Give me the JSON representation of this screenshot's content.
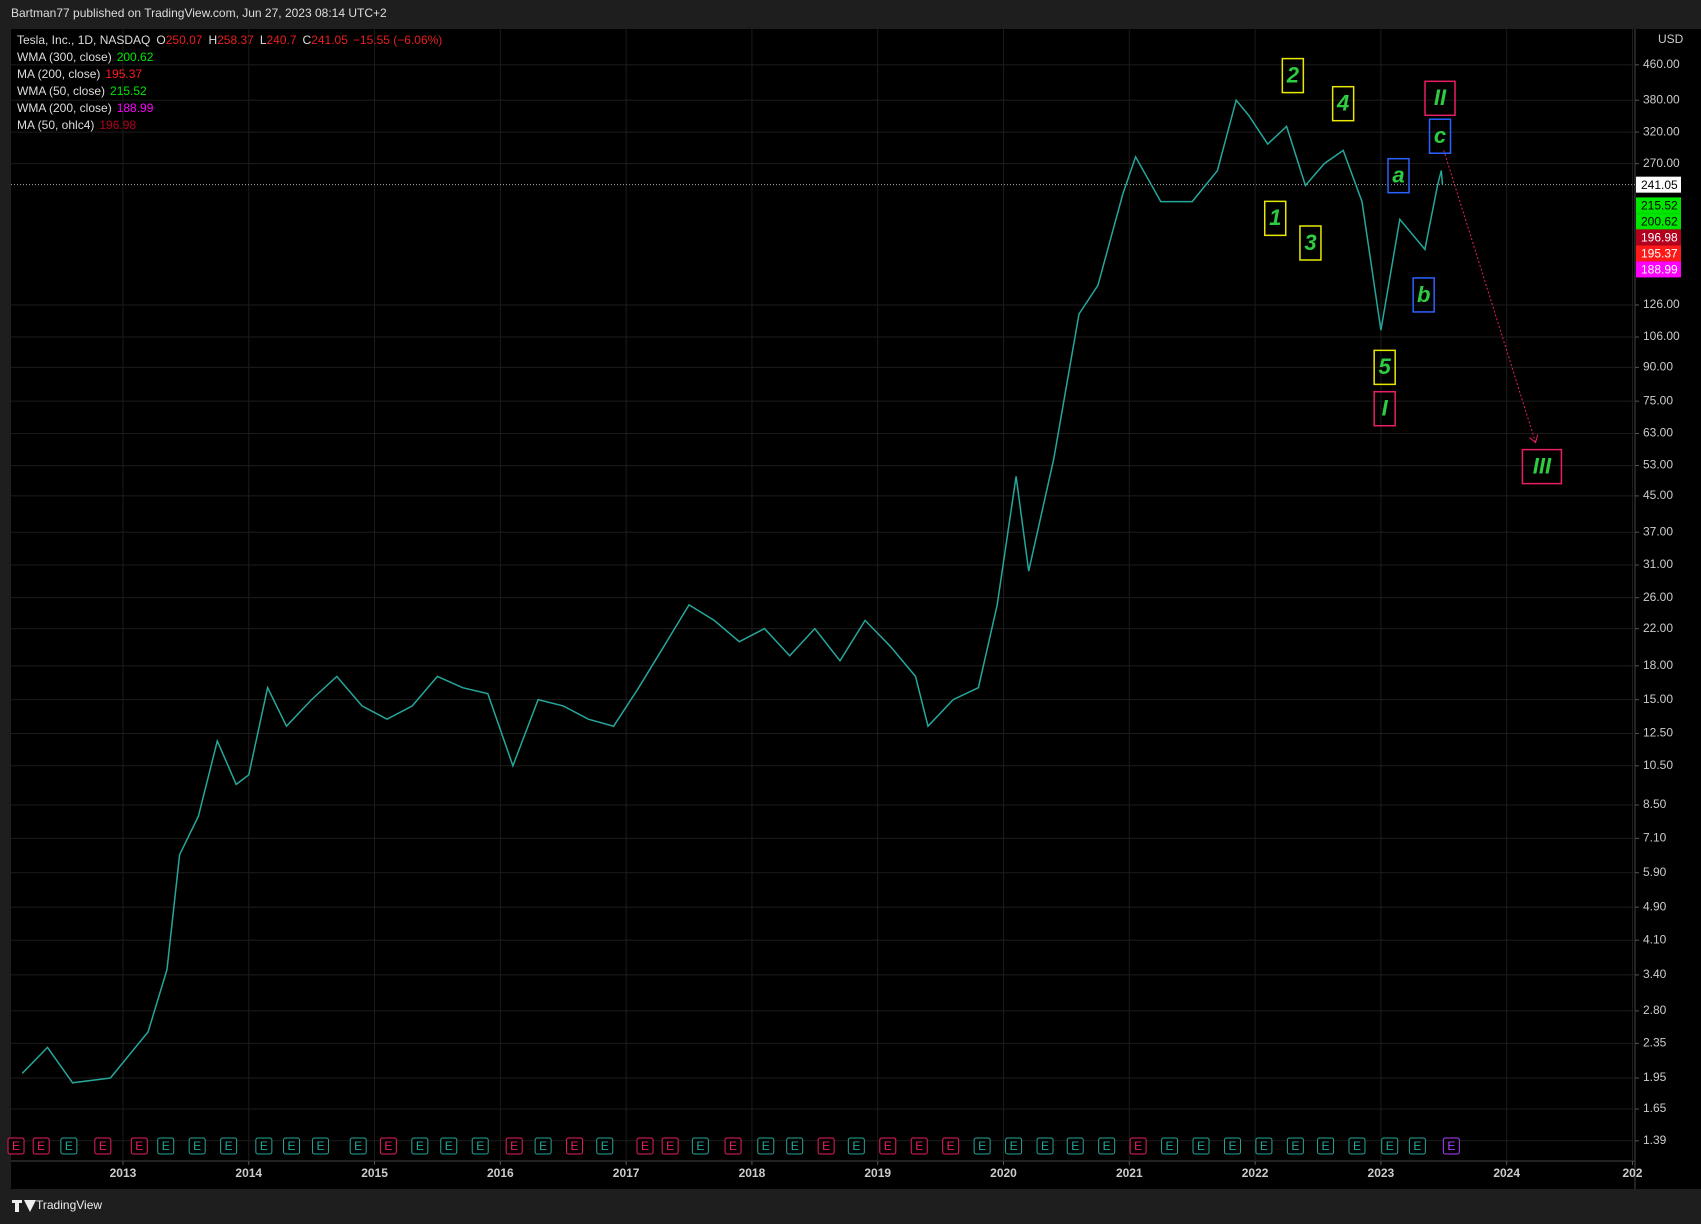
{
  "header": {
    "text": "Bartman77 published on TradingView.com, Jun 27, 2023 08:14 UTC+2"
  },
  "footer": {
    "brand": "TradingView"
  },
  "chart_data": {
    "type": "line",
    "symbol": "Tesla, Inc., 1D, NASDAQ",
    "ohlc": [
      {
        "label": "O",
        "value": 250.07
      },
      {
        "label": "H",
        "value": 258.37
      },
      {
        "label": "L",
        "value": 240.7
      },
      {
        "label": "C",
        "value": 241.05
      }
    ],
    "change": "−15.55 (−6.06%)",
    "currency": "USD",
    "indicators": [
      {
        "name": "WMA (300, close)",
        "value": 200.62,
        "color": "#00e600"
      },
      {
        "name": "MA (200, close)",
        "value": 195.37,
        "color": "#ff1a1a"
      },
      {
        "name": "WMA (50, close)",
        "value": 215.52,
        "color": "#00e600"
      },
      {
        "name": "WMA (200, close)",
        "value": 188.99,
        "color": "#ff00ff"
      },
      {
        "name": "MA (50, ohlc4)",
        "value": 196.98,
        "color": "#b2001e"
      }
    ],
    "x": [
      2012.2,
      2012.4,
      2012.6,
      2012.9,
      2013.2,
      2013.35,
      2013.45,
      2013.6,
      2013.75,
      2013.9,
      2014.0,
      2014.15,
      2014.3,
      2014.5,
      2014.7,
      2014.9,
      2015.1,
      2015.3,
      2015.5,
      2015.7,
      2015.9,
      2016.1,
      2016.3,
      2016.5,
      2016.7,
      2016.9,
      2017.1,
      2017.3,
      2017.5,
      2017.7,
      2017.9,
      2018.1,
      2018.3,
      2018.5,
      2018.7,
      2018.9,
      2019.1,
      2019.3,
      2019.4,
      2019.6,
      2019.8,
      2019.95,
      2020.1,
      2020.2,
      2020.4,
      2020.6,
      2020.75,
      2020.95,
      2021.05,
      2021.25,
      2021.5,
      2021.7,
      2021.85,
      2021.95,
      2022.1,
      2022.25,
      2022.4,
      2022.55,
      2022.7,
      2022.85,
      2023.0,
      2023.15,
      2023.35,
      2023.45,
      2023.48,
      2023.49
    ],
    "series": [
      {
        "name": "TSLA",
        "color": "#26a69a",
        "values": [
          2.0,
          2.3,
          1.9,
          1.95,
          2.5,
          3.5,
          6.5,
          8.0,
          12,
          9.5,
          10,
          16,
          13,
          15,
          17,
          14.5,
          13.5,
          14.5,
          17,
          16,
          15.5,
          10.5,
          15,
          14.5,
          13.5,
          13,
          16,
          20,
          25,
          23,
          20.5,
          22,
          19,
          22,
          18.5,
          23,
          20,
          17,
          13,
          15,
          16,
          25,
          50,
          30,
          55,
          120,
          140,
          230,
          280,
          220,
          220,
          260,
          380,
          350,
          300,
          330,
          240,
          270,
          290,
          220,
          110,
          200,
          170,
          240,
          260,
          241.05
        ]
      }
    ],
    "xlim": [
      2012.11,
      2025.02
    ],
    "xticks": [
      2013,
      2014,
      2015,
      2016,
      2017,
      2018,
      2019,
      2020,
      2021,
      2022,
      2023,
      2024,
      {
        "value": 2025,
        "label": "202"
      }
    ],
    "ylim": [
      1.26,
      558
    ],
    "log_scale": true,
    "grid": true,
    "yticks": [
      {
        "value": 460,
        "label": "460.00"
      },
      {
        "value": 380,
        "label": "380.00"
      },
      {
        "value": 320,
        "label": "320.00"
      },
      {
        "value": 270,
        "label": "270.00"
      },
      {
        "value": 126,
        "label": "126.00"
      },
      {
        "value": 106,
        "label": "106.00"
      },
      {
        "value": 90,
        "label": "90.00"
      },
      {
        "value": 75,
        "label": "75.00"
      },
      {
        "value": 63,
        "label": "63.00"
      },
      {
        "value": 53,
        "label": "53.00"
      },
      {
        "value": 45,
        "label": "45.00"
      },
      {
        "value": 37,
        "label": "37.00"
      },
      {
        "value": 31,
        "label": "31.00"
      },
      {
        "value": 26,
        "label": "26.00"
      },
      {
        "value": 22,
        "label": "22.00"
      },
      {
        "value": 18,
        "label": "18.00"
      },
      {
        "value": 15,
        "label": "15.00"
      },
      {
        "value": 12.5,
        "label": "12.50"
      },
      {
        "value": 10.5,
        "label": "10.50"
      },
      {
        "value": 8.5,
        "label": "8.50"
      },
      {
        "value": 7.1,
        "label": "7.10"
      },
      {
        "value": 5.9,
        "label": "5.90"
      },
      {
        "value": 4.9,
        "label": "4.90"
      },
      {
        "value": 4.1,
        "label": "4.10"
      },
      {
        "value": 3.4,
        "label": "3.40"
      },
      {
        "value": 2.8,
        "label": "2.80"
      },
      {
        "value": 2.35,
        "label": "2.35"
      },
      {
        "value": 1.95,
        "label": "1.95"
      },
      {
        "value": 1.65,
        "label": "1.65"
      },
      {
        "value": 1.39,
        "label": "1.39"
      }
    ],
    "annotations": [
      {
        "text": "1",
        "x": 2022.16,
        "y": 201,
        "color": "#e8e800"
      },
      {
        "text": "2",
        "x": 2022.3,
        "y": 434,
        "color": "#e8e800"
      },
      {
        "text": "3",
        "x": 2022.44,
        "y": 176,
        "color": "#e8e800"
      },
      {
        "text": "4",
        "x": 2022.7,
        "y": 373,
        "color": "#e8e800"
      },
      {
        "text": "5",
        "x": 2023.03,
        "y": 90,
        "color": "#e8e800"
      },
      {
        "text": "I",
        "x": 2023.03,
        "y": 72,
        "color": "#e91e63"
      },
      {
        "text": "II",
        "x": 2023.47,
        "y": 384,
        "color": "#e91e63"
      },
      {
        "text": "III",
        "x": 2024.28,
        "y": 52.7,
        "color": "#e91e63"
      },
      {
        "text": "a",
        "x": 2023.14,
        "y": 253,
        "color": "#2962ff"
      },
      {
        "text": "b",
        "x": 2023.34,
        "y": 133,
        "color": "#2962ff"
      },
      {
        "text": "c",
        "x": 2023.47,
        "y": 313,
        "color": "#2962ff"
      }
    ],
    "arrow": {
      "x": [
        2023.5,
        2024.23
      ],
      "y": [
        290,
        60
      ],
      "color": "#e91e63"
    },
    "earnings": {
      "label": "E",
      "red_x": [
        2012.15,
        2012.35,
        2012.84,
        2013.13,
        2015.11,
        2016.11,
        2016.59,
        2017.15,
        2017.35,
        2017.85,
        2018.59,
        2019.08,
        2019.33,
        2019.58,
        2021.07
      ],
      "teal_x": [
        2012.57,
        2013.34,
        2013.59,
        2013.84,
        2014.12,
        2014.34,
        2014.57,
        2014.87,
        2015.36,
        2015.59,
        2015.84,
        2016.34,
        2016.83,
        2017.59,
        2018.11,
        2018.34,
        2018.83,
        2019.83,
        2020.08,
        2020.33,
        2020.57,
        2020.82,
        2021.32,
        2021.57,
        2021.82,
        2022.07,
        2022.32,
        2022.56,
        2022.81,
        2023.07,
        2023.29
      ],
      "future_x": [
        2023.56
      ]
    }
  }
}
